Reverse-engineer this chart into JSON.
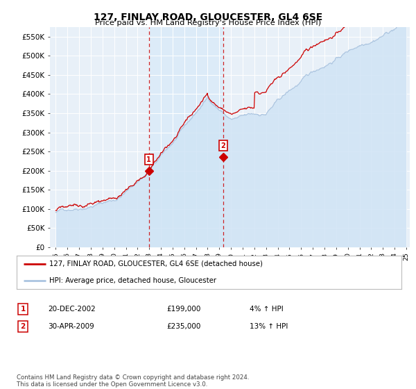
{
  "title": "127, FINLAY ROAD, GLOUCESTER, GL4 6SE",
  "subtitle": "Price paid vs. HM Land Registry's House Price Index (HPI)",
  "ylim": [
    0,
    575000
  ],
  "yticks": [
    0,
    50000,
    100000,
    150000,
    200000,
    250000,
    300000,
    350000,
    400000,
    450000,
    500000,
    550000
  ],
  "ytick_labels": [
    "£0",
    "£50K",
    "£100K",
    "£150K",
    "£200K",
    "£250K",
    "£300K",
    "£350K",
    "£400K",
    "£450K",
    "£500K",
    "£550K"
  ],
  "hpi_color": "#aac4e0",
  "hpi_fill_color": "#d0e4f5",
  "price_color": "#cc0000",
  "dashed_color": "#cc0000",
  "shade_color": "#d8eaf8",
  "marker1_year": 2002.97,
  "marker1_price": 199000,
  "marker2_year": 2009.33,
  "marker2_price": 235000,
  "legend_label1": "127, FINLAY ROAD, GLOUCESTER, GL4 6SE (detached house)",
  "legend_label2": "HPI: Average price, detached house, Gloucester",
  "table_rows": [
    [
      "1",
      "20-DEC-2002",
      "£199,000",
      "4% ↑ HPI"
    ],
    [
      "2",
      "30-APR-2009",
      "£235,000",
      "13% ↑ HPI"
    ]
  ],
  "footer": "Contains HM Land Registry data © Crown copyright and database right 2024.\nThis data is licensed under the Open Government Licence v3.0.",
  "bg_color": "#e8f0f8",
  "plot_bg": "#e8f0f8"
}
